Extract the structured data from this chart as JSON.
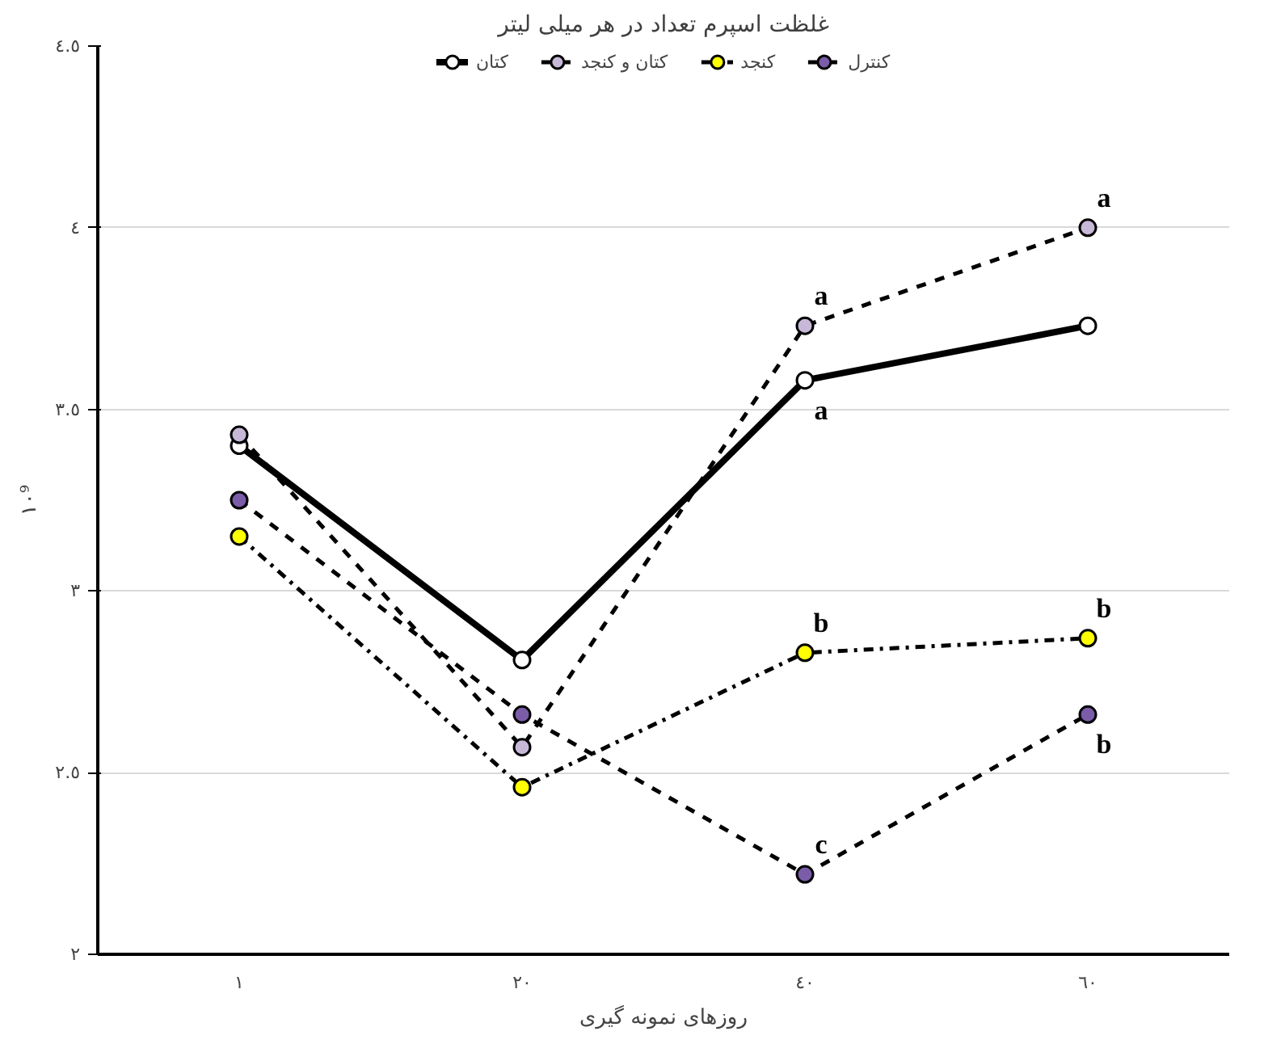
{
  "chart_data": {
    "type": "line",
    "title": "غلظت اسپرم تعداد در هر میلی لیتر",
    "xlabel": "روزهای نمونه گیری",
    "ylabel": "١٠⁹",
    "categories": [
      "١",
      "٢٠",
      "٤٠",
      "٦٠"
    ],
    "series": [
      {
        "name": "کتان",
        "color": "#ffffff",
        "line_style": "solid",
        "values": [
          3.4,
          2.81,
          3.58,
          3.73
        ]
      },
      {
        "name": "کتان و کنجد",
        "color": "#c8b8d8",
        "line_style": "dashed",
        "values": [
          3.43,
          2.57,
          3.73,
          4.0
        ]
      },
      {
        "name": "کنجد",
        "color": "#ffff00",
        "line_style": "dashdot",
        "values": [
          3.15,
          2.46,
          2.83,
          2.87
        ]
      },
      {
        "name": "کنترل",
        "color": "#7b5ca8",
        "line_style": "dashed",
        "values": [
          3.25,
          2.66,
          2.22,
          2.66
        ]
      }
    ],
    "ylim": [
      2,
      4.5
    ],
    "yticks": [
      {
        "value": 2,
        "label": "٢"
      },
      {
        "value": 2.5,
        "label": "٢.٥"
      },
      {
        "value": 3,
        "label": "٣"
      },
      {
        "value": 3.5,
        "label": "٣.٥"
      },
      {
        "value": 4,
        "label": "٤"
      },
      {
        "value": 4.5,
        "label": "٤.٥"
      }
    ],
    "annotations": [
      {
        "text": "a",
        "x": "٤٠",
        "y": 3.73
      },
      {
        "text": "a",
        "x": "٤٠",
        "y": 3.58
      },
      {
        "text": "b",
        "x": "٤٠",
        "y": 2.83
      },
      {
        "text": "c",
        "x": "٤٠",
        "y": 2.22
      },
      {
        "text": "a",
        "x": "٦٠",
        "y": 4.0
      },
      {
        "text": "b",
        "x": "٦٠",
        "y": 2.87
      },
      {
        "text": "b",
        "x": "٦٠",
        "y": 2.66
      }
    ],
    "grid": "y",
    "legend": "top",
    "marker": "circle"
  }
}
